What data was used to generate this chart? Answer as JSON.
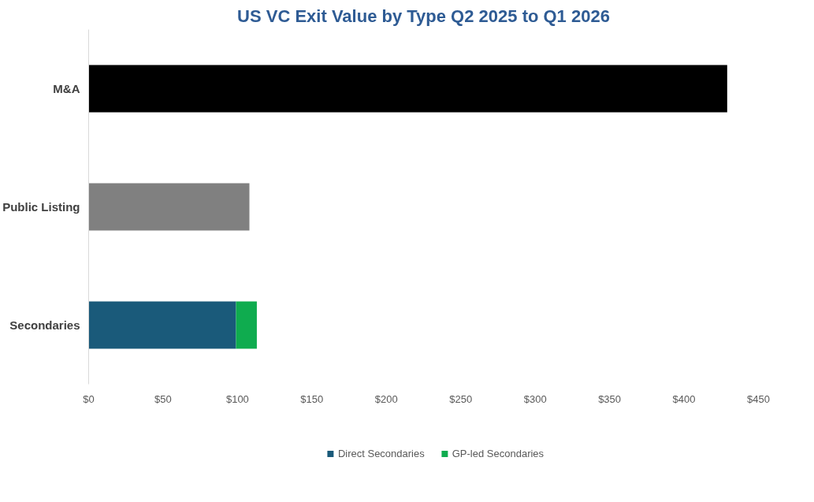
{
  "chart_data": {
    "type": "bar",
    "title": "US VC Exit Value by Type Q2 2025 to Q1 2026",
    "orientation": "horizontal",
    "stacked": true,
    "categories": [
      "M&A",
      "Public Listing",
      "Secondaries"
    ],
    "series": [
      {
        "color": "#000000",
        "values": [
          429,
          null,
          null
        ]
      },
      {
        "color": "#808080",
        "values": [
          null,
          108,
          null
        ]
      },
      {
        "name": "Direct Secondaries",
        "color": "#1a5a7a",
        "values": [
          null,
          null,
          99
        ]
      },
      {
        "name": "GP-led Secondaries",
        "color": "#0fac4f",
        "values": [
          null,
          null,
          14
        ]
      }
    ],
    "xlim": [
      0,
      450
    ],
    "xticks": [
      {
        "value": 0,
        "label": "$0"
      },
      {
        "value": 50,
        "label": "$50"
      },
      {
        "value": 100,
        "label": "$100"
      },
      {
        "value": 150,
        "label": "$150"
      },
      {
        "value": 200,
        "label": "$200"
      },
      {
        "value": 250,
        "label": "$250"
      },
      {
        "value": 300,
        "label": "$300"
      },
      {
        "value": 350,
        "label": "$350"
      },
      {
        "value": 400,
        "label": "$400"
      },
      {
        "value": 450,
        "label": "$450"
      }
    ],
    "grid": false,
    "legend": "bottom"
  }
}
